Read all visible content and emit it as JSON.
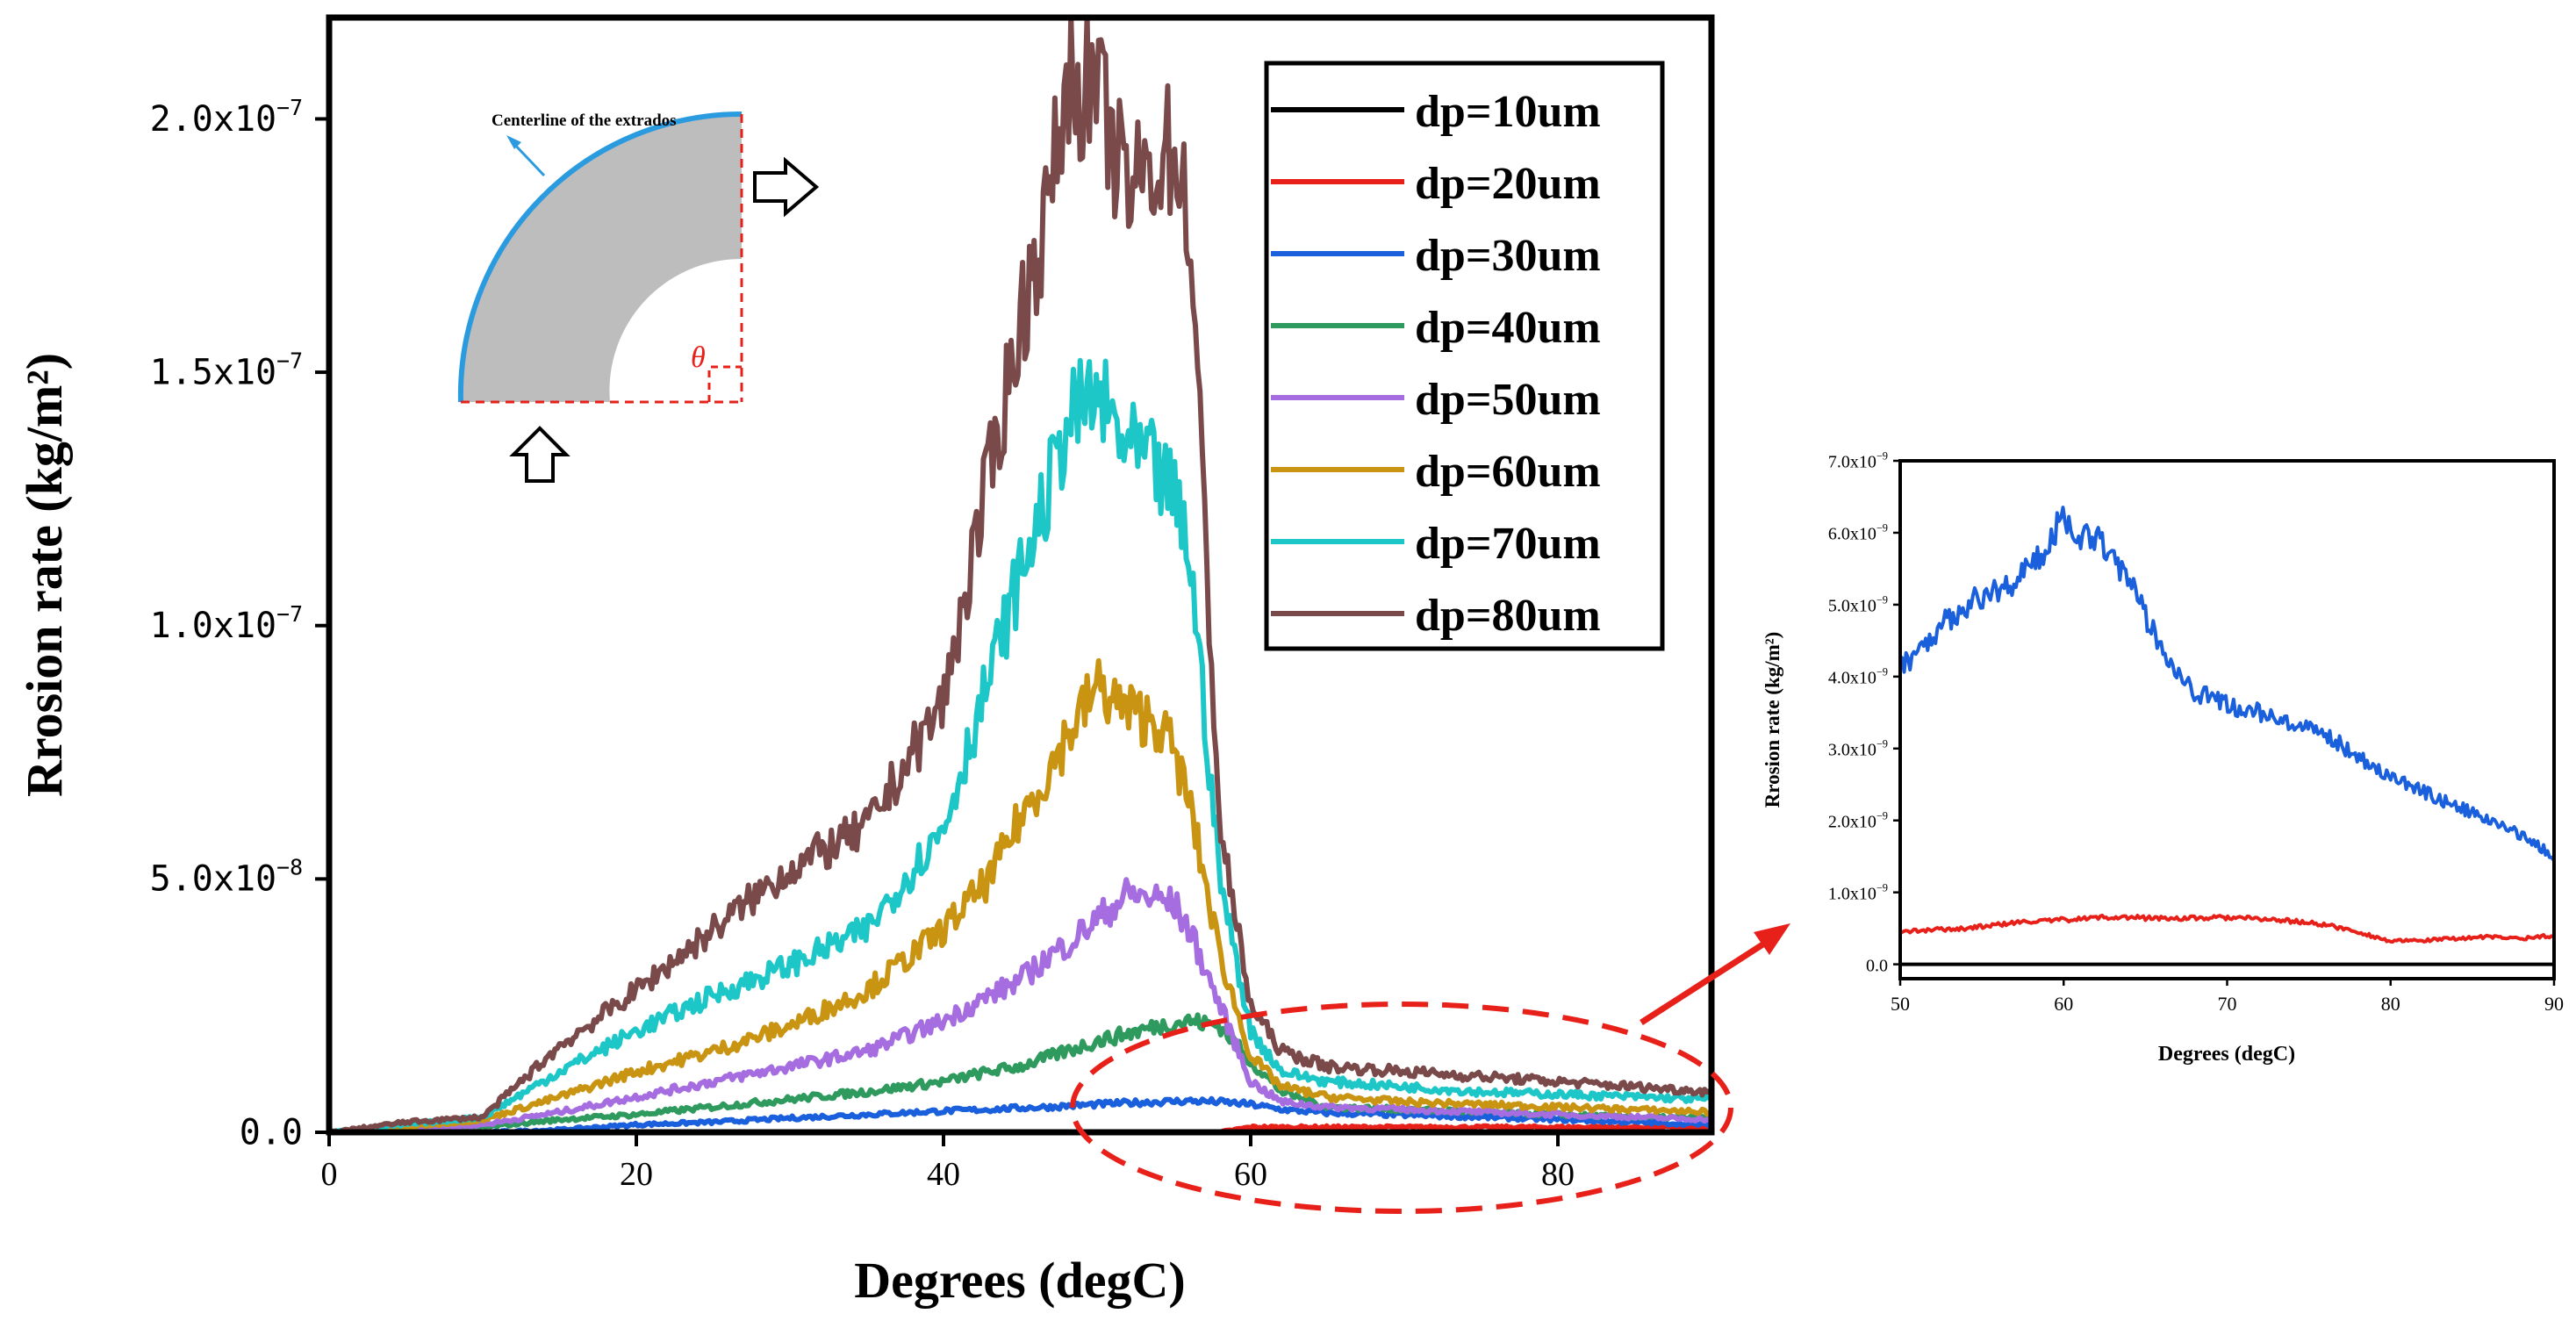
{
  "chart_data": [
    {
      "type": "line",
      "title": "",
      "xlabel": "Degrees (degC)",
      "ylabel": "Rrosion rate (kg/m²)",
      "xlim": [
        0,
        90
      ],
      "ylim": [
        0,
        2.2e-07
      ],
      "x_ticks": [
        0,
        20,
        40,
        60,
        80
      ],
      "y_ticks": [
        {
          "value": 0,
          "label": "0.0"
        },
        {
          "value": 5e-08,
          "label": "5.0x10",
          "exp": "-8"
        },
        {
          "value": 1e-07,
          "label": "1.0x10",
          "exp": "-7"
        },
        {
          "value": 1.5e-07,
          "label": "1.5x10",
          "exp": "-7"
        },
        {
          "value": 2e-07,
          "label": "2.0x10",
          "exp": "-7"
        }
      ],
      "legend_position": "top-right",
      "x": [
        0,
        5,
        10,
        15,
        20,
        25,
        30,
        35,
        40,
        43,
        45,
        47,
        48,
        50,
        52,
        54,
        55,
        56,
        58,
        60,
        62,
        65,
        70,
        75,
        80,
        85,
        90
      ],
      "series": [
        {
          "name": "dp=10um",
          "color": "#000000",
          "values": [
            0,
            0,
            0,
            0,
            0,
            0,
            0,
            0,
            0,
            0,
            0,
            0,
            0,
            0,
            0,
            0,
            0,
            0,
            0,
            0,
            0,
            0,
            0,
            0,
            0,
            0,
            0
          ]
        },
        {
          "name": "dp=20um",
          "color": "#e8201a",
          "values": [
            0,
            0,
            0,
            0,
            0,
            0,
            0,
            0,
            0,
            0,
            0,
            0,
            0,
            0,
            0,
            0,
            0,
            0,
            0,
            1e-09,
            1e-09,
            1e-09,
            1e-09,
            1e-09,
            1e-09,
            1e-09,
            1e-09
          ]
        },
        {
          "name": "dp=30um",
          "color": "#1a5fdc",
          "values": [
            0,
            0,
            0,
            5e-10,
            1.5e-09,
            2e-09,
            2.8e-09,
            3.5e-09,
            4.2e-09,
            4.5e-09,
            4.8e-09,
            5e-09,
            5.2e-09,
            5.5e-09,
            5.8e-09,
            6e-09,
            6.1e-09,
            6.2e-09,
            6e-09,
            5.5e-09,
            4.5e-09,
            3.8e-09,
            3.4e-09,
            3e-09,
            2.5e-09,
            2e-09,
            1.5e-09
          ]
        },
        {
          "name": "dp=40um",
          "color": "#2e9a5e",
          "values": [
            0,
            3e-10,
            1e-09,
            2.5e-09,
            3.5e-09,
            5e-09,
            6.5e-09,
            8e-09,
            1e-08,
            1.2e-08,
            1.3e-08,
            1.5e-08,
            1.6e-08,
            1.8e-08,
            1.95e-08,
            2.1e-08,
            2.15e-08,
            2.2e-08,
            2.1e-08,
            1.4e-08,
            8e-09,
            5e-09,
            4.5e-09,
            4e-09,
            3.5e-09,
            3e-09,
            2.8e-09
          ]
        },
        {
          "name": "dp=50um",
          "color": "#a56de0",
          "values": [
            0,
            5e-10,
            1.5e-09,
            4e-09,
            7e-09,
            1e-08,
            1.3e-08,
            1.6e-08,
            2.2e-08,
            2.7e-08,
            3e-08,
            3.5e-08,
            3.7e-08,
            4.2e-08,
            4.7e-08,
            4.6e-08,
            4.5e-08,
            4e-08,
            2.5e-08,
            1e-08,
            6e-09,
            5e-09,
            4.5e-09,
            4e-09,
            3.5e-09,
            3e-09,
            2.5e-09
          ]
        },
        {
          "name": "dp=60um",
          "color": "#c99412",
          "values": [
            0,
            1e-09,
            2.5e-09,
            7e-09,
            1.2e-08,
            1.6e-08,
            2.1e-08,
            2.8e-08,
            4e-08,
            5e-08,
            6.2e-08,
            7.2e-08,
            7.8e-08,
            8.8e-08,
            8.3e-08,
            8.1e-08,
            7.5e-08,
            6.5e-08,
            3.5e-08,
            1.5e-08,
            9e-09,
            7e-09,
            6e-09,
            5.5e-09,
            5e-09,
            4.5e-09,
            4e-09
          ]
        },
        {
          "name": "dp=70um",
          "color": "#1ec7c7",
          "values": [
            0,
            1.5e-09,
            3e-09,
            1.2e-08,
            2e-08,
            2.7e-08,
            3.3e-08,
            4e-08,
            6e-08,
            9e-08,
            1.1e-07,
            1.28e-07,
            1.4e-07,
            1.45e-07,
            1.35e-07,
            1.3e-07,
            1.25e-07,
            1.15e-07,
            5e-08,
            2e-08,
            1.2e-08,
            1e-08,
            9e-09,
            8e-09,
            7.5e-09,
            7e-09,
            6.5e-09
          ]
        },
        {
          "name": "dp=80um",
          "color": "#7a4a4a",
          "values": [
            0,
            2e-09,
            3e-09,
            1.7e-08,
            2.8e-08,
            4e-08,
            5.2e-08,
            6e-08,
            8.5e-08,
            1.3e-07,
            1.6e-07,
            1.85e-07,
            2.08e-07,
            2.05e-07,
            1.85e-07,
            1.92e-07,
            1.95e-07,
            1.8e-07,
            6e-08,
            2.5e-08,
            1.6e-08,
            1.3e-08,
            1.2e-08,
            1.1e-08,
            1e-08,
            9e-09,
            8e-09
          ]
        }
      ],
      "annotations": [
        {
          "kind": "inset-diagram",
          "label": "Centerline of the extrados",
          "symbol": "θ"
        }
      ]
    },
    {
      "type": "line",
      "title": "",
      "xlabel": "Degrees (degC)",
      "ylabel": "Rrosion rate (kg/m²)",
      "xlim": [
        50,
        90
      ],
      "ylim": [
        -2e-10,
        7e-09
      ],
      "x_ticks": [
        50,
        60,
        70,
        80,
        90
      ],
      "y_ticks": [
        {
          "value": 0,
          "label": "0.0"
        },
        {
          "value": 1e-09,
          "label": "1.0x10",
          "exp": "-9"
        },
        {
          "value": 2e-09,
          "label": "2.0x10",
          "exp": "-9"
        },
        {
          "value": 3e-09,
          "label": "3.0x10",
          "exp": "-9"
        },
        {
          "value": 4e-09,
          "label": "4.0x10",
          "exp": "-9"
        },
        {
          "value": 5e-09,
          "label": "5.0x10",
          "exp": "-9"
        },
        {
          "value": 6e-09,
          "label": "6.0x10",
          "exp": "-9"
        },
        {
          "value": 7e-09,
          "label": "7.0x10",
          "exp": "-9"
        }
      ],
      "x": [
        50,
        52,
        54,
        56,
        58,
        59,
        60,
        61,
        62,
        63,
        64,
        66,
        68,
        70,
        72,
        74,
        76,
        78,
        80,
        82,
        84,
        86,
        88,
        90
      ],
      "series": [
        {
          "name": "dp=10um",
          "color": "#000000",
          "values": [
            0,
            0,
            0,
            0,
            0,
            0,
            0,
            0,
            0,
            0,
            0,
            0,
            0,
            0,
            0,
            0,
            0,
            0,
            0,
            0,
            0,
            0,
            0,
            0
          ]
        },
        {
          "name": "dp=20um",
          "color": "#e8201a",
          "values": [
            4.5e-10,
            4.8e-10,
            5e-10,
            5.5e-10,
            6e-10,
            6e-10,
            6.2e-10,
            6.3e-10,
            6.5e-10,
            6.6e-10,
            6.5e-10,
            6.4e-10,
            6.4e-10,
            6.5e-10,
            6.3e-10,
            6e-10,
            5.5e-10,
            4.5e-10,
            3.2e-10,
            3.3e-10,
            3.6e-10,
            3.8e-10,
            3.6e-10,
            4e-10
          ]
        },
        {
          "name": "dp=30um",
          "color": "#1a5fdc",
          "values": [
            4.1e-09,
            4.6e-09,
            5e-09,
            5.2e-09,
            5.5e-09,
            5.8e-09,
            6.3e-09,
            5.9e-09,
            6e-09,
            5.7e-09,
            5.3e-09,
            4.4e-09,
            3.8e-09,
            3.6e-09,
            3.5e-09,
            3.3e-09,
            3.2e-09,
            2.9e-09,
            2.6e-09,
            2.4e-09,
            2.2e-09,
            2e-09,
            1.8e-09,
            1.5e-09
          ]
        }
      ]
    }
  ]
}
